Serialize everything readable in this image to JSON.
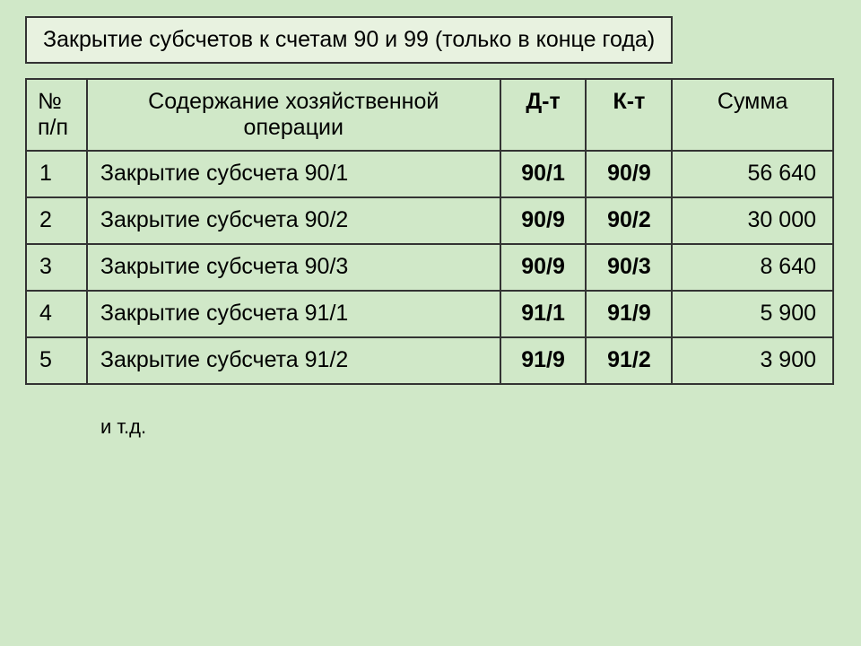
{
  "title": "Закрытие субсчетов к счетам 90 и 99 (только в конце года)",
  "headers": {
    "num": "№ п/п",
    "desc": "Содержание хозяйственной операции",
    "dt": "Д-т",
    "kt": "К-т",
    "sum": "Сумма"
  },
  "rows": [
    {
      "num": "1",
      "desc": "Закрытие субсчета 90/1",
      "dt": "90/1",
      "kt": "90/9",
      "sum": "56 640"
    },
    {
      "num": "2",
      "desc": "Закрытие субсчета 90/2",
      "dt": "90/9",
      "kt": "90/2",
      "sum": "30 000"
    },
    {
      "num": "3",
      "desc": "Закрытие субсчета 90/3",
      "dt": "90/9",
      "kt": "90/3",
      "sum": "8 640"
    },
    {
      "num": "4",
      "desc": "Закрытие субсчета 91/1",
      "dt": "91/1",
      "kt": "91/9",
      "sum": "5 900"
    },
    {
      "num": "5",
      "desc": "Закрытие субсчета 91/2",
      "dt": "91/9",
      "kt": "91/2",
      "sum": "3 900"
    }
  ],
  "footer": "и т.д.",
  "styling": {
    "background_color": "#d0e8c8",
    "title_bg_color": "#e8f2e0",
    "border_color": "#333333",
    "text_color": "#000000",
    "title_fontsize": 25,
    "cell_fontsize": 25,
    "footer_fontsize": 22,
    "bold_columns": [
      "dt",
      "kt"
    ],
    "column_widths": {
      "num": 68,
      "desc": 462,
      "dt": 96,
      "kt": 96,
      "sum": 180
    },
    "column_align": {
      "num": "left",
      "desc": "left",
      "dt": "center",
      "kt": "center",
      "sum": "right"
    }
  }
}
